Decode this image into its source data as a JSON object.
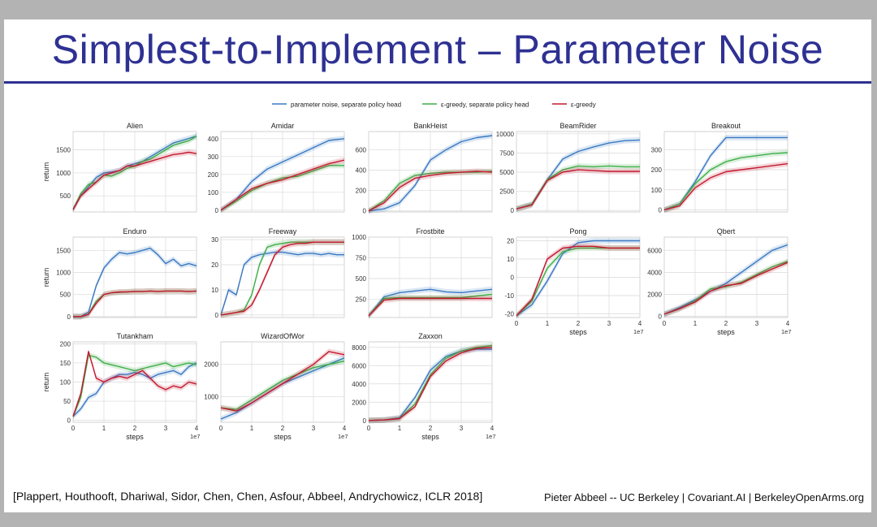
{
  "slide": {
    "title": "Simplest-to-Implement – Parameter Noise",
    "citation": "[Plappert, Houthooft,  Dhariwal, Sidor, Chen, Chen, Asfour, Abbeel, Andrychowicz, ICLR 2018]",
    "credit": "Pieter Abbeel -- UC Berkeley | Covariant.AI | BerkeleyOpenArms.org"
  },
  "colors": {
    "title": "#2e3192",
    "blue": "#3a78c2",
    "green": "#3fae49",
    "red": "#c4182f",
    "grid": "#d9d9d9"
  },
  "chart_data": {
    "type": "line",
    "legend": [
      {
        "name": "parameter noise, separate policy head",
        "color": "#3a78c2"
      },
      {
        "name": "ε-greedy, separate policy head",
        "color": "#3fae49"
      },
      {
        "name": "ε-greedy",
        "color": "#c4182f"
      }
    ],
    "x_tick_labels": [
      "0",
      "1",
      "2",
      "3",
      "4"
    ],
    "x_multiplier": "1e7",
    "xlabel": "steps",
    "ylabel": "return",
    "xlim": [
      0,
      4
    ],
    "panels": [
      {
        "title": "Alien",
        "ylim": [
          150,
          1900
        ],
        "yticks": [
          500,
          1000,
          1500
        ],
        "x": [
          0,
          0.25,
          0.5,
          0.75,
          1,
          1.25,
          1.5,
          1.75,
          2,
          2.25,
          2.5,
          2.75,
          3,
          3.25,
          3.5,
          3.75,
          4
        ],
        "series": [
          {
            "name": "parameter noise, separate policy head",
            "values": [
              200,
              500,
              700,
              900,
              1000,
              1020,
              1050,
              1150,
              1200,
              1250,
              1350,
              1450,
              1550,
              1650,
              1700,
              1750,
              1800
            ]
          },
          {
            "name": "ε-greedy, separate policy head",
            "values": [
              200,
              550,
              750,
              800,
              950,
              930,
              1000,
              1100,
              1150,
              1250,
              1300,
              1400,
              1500,
              1600,
              1650,
              1700,
              1800
            ]
          },
          {
            "name": "ε-greedy",
            "values": [
              200,
              500,
              650,
              800,
              950,
              1000,
              1050,
              1150,
              1150,
              1200,
              1250,
              1300,
              1350,
              1400,
              1420,
              1450,
              1420
            ]
          }
        ]
      },
      {
        "title": "Amidar",
        "ylim": [
          -10,
          440
        ],
        "yticks": [
          0,
          100,
          200,
          300,
          400
        ],
        "x": [
          0,
          0.5,
          1,
          1.5,
          2,
          2.5,
          3,
          3.5,
          4
        ],
        "series": [
          {
            "name": "parameter noise, separate policy head",
            "values": [
              0,
              60,
              160,
              230,
              270,
              310,
              350,
              390,
              400
            ]
          },
          {
            "name": "ε-greedy, separate policy head",
            "values": [
              0,
              50,
              110,
              150,
              180,
              190,
              220,
              250,
              250
            ]
          },
          {
            "name": "ε-greedy",
            "values": [
              0,
              60,
              120,
              150,
              170,
              200,
              230,
              260,
              280
            ]
          }
        ]
      },
      {
        "title": "BankHeist",
        "ylim": [
          -10,
          780
        ],
        "yticks": [
          0,
          200,
          400,
          600
        ],
        "x": [
          0,
          0.5,
          1,
          1.5,
          2,
          2.5,
          3,
          3.5,
          4
        ],
        "series": [
          {
            "name": "parameter noise, separate policy head",
            "values": [
              0,
              20,
              80,
              250,
              500,
              600,
              680,
              720,
              740
            ]
          },
          {
            "name": "ε-greedy, separate policy head",
            "values": [
              0,
              100,
              270,
              350,
              370,
              380,
              380,
              380,
              390
            ]
          },
          {
            "name": "ε-greedy",
            "values": [
              0,
              80,
              230,
              320,
              350,
              370,
              380,
              390,
              380
            ]
          }
        ]
      },
      {
        "title": "BeamRider",
        "ylim": [
          -200,
          10300
        ],
        "yticks": [
          0,
          2500,
          5000,
          7500,
          10000
        ],
        "x": [
          0,
          0.5,
          1,
          1.5,
          2,
          2.5,
          3,
          3.5,
          4
        ],
        "series": [
          {
            "name": "parameter noise, separate policy head",
            "values": [
              200,
              800,
              4000,
              6700,
              7700,
              8300,
              8800,
              9100,
              9200
            ]
          },
          {
            "name": "ε-greedy, separate policy head",
            "values": [
              200,
              800,
              4000,
              5300,
              5800,
              5700,
              5800,
              5700,
              5700
            ]
          },
          {
            "name": "ε-greedy",
            "values": [
              200,
              700,
              3900,
              5000,
              5300,
              5200,
              5100,
              5100,
              5100
            ]
          }
        ]
      },
      {
        "title": "Breakout",
        "ylim": [
          -10,
          390
        ],
        "yticks": [
          0,
          100,
          200,
          300
        ],
        "x": [
          0,
          0.5,
          1,
          1.5,
          2,
          2.5,
          3,
          3.5,
          4
        ],
        "series": [
          {
            "name": "parameter noise, separate policy head",
            "values": [
              0,
              30,
              140,
              270,
              360,
              360,
              360,
              360,
              360
            ]
          },
          {
            "name": "ε-greedy, separate policy head",
            "values": [
              0,
              30,
              130,
              200,
              240,
              260,
              270,
              280,
              285
            ]
          },
          {
            "name": "ε-greedy",
            "values": [
              0,
              20,
              110,
              160,
              190,
              200,
              210,
              220,
              230
            ]
          }
        ]
      },
      {
        "title": "Enduro",
        "ylim": [
          -20,
          1800
        ],
        "yticks": [
          0,
          500,
          1000,
          1500
        ],
        "x": [
          0,
          0.25,
          0.5,
          0.75,
          1,
          1.25,
          1.5,
          1.75,
          2,
          2.25,
          2.5,
          2.75,
          3,
          3.25,
          3.5,
          3.75,
          4
        ],
        "series": [
          {
            "name": "parameter noise, separate policy head",
            "values": [
              0,
              0,
              100,
              700,
              1100,
              1300,
              1450,
              1420,
              1450,
              1500,
              1550,
              1400,
              1200,
              1300,
              1150,
              1200,
              1150
            ]
          },
          {
            "name": "ε-greedy, separate policy head",
            "values": [
              0,
              0,
              50,
              350,
              500,
              540,
              550,
              560,
              570,
              570,
              580,
              570,
              580,
              580,
              580,
              570,
              580
            ]
          },
          {
            "name": "ε-greedy",
            "values": [
              0,
              0,
              50,
              300,
              500,
              540,
              560,
              560,
              570,
              570,
              580,
              570,
              580,
              580,
              580,
              570,
              580
            ]
          }
        ]
      },
      {
        "title": "Freeway",
        "ylim": [
          -1,
          31
        ],
        "yticks": [
          0,
          10,
          20,
          30
        ],
        "x": [
          0,
          0.25,
          0.5,
          0.75,
          1,
          1.25,
          1.5,
          1.75,
          2,
          2.25,
          2.5,
          2.75,
          3,
          3.25,
          3.5,
          3.75,
          4
        ],
        "series": [
          {
            "name": "parameter noise, separate policy head",
            "values": [
              0,
              10,
              8,
              20,
              23,
              24,
              24.5,
              25,
              25,
              24.5,
              24,
              24.5,
              24.5,
              24,
              24.5,
              24,
              24
            ]
          },
          {
            "name": "ε-greedy, separate policy head",
            "values": [
              0,
              0.5,
              1,
              2,
              8,
              20,
              27,
              28,
              28.5,
              29,
              29,
              29,
              29,
              29,
              29,
              29,
              29
            ]
          },
          {
            "name": "ε-greedy",
            "values": [
              0,
              0.5,
              1,
              1.5,
              4,
              10,
              17,
              24,
              27,
              28,
              28.5,
              28.5,
              29,
              29,
              29,
              29,
              29
            ]
          }
        ]
      },
      {
        "title": "Frostbite",
        "ylim": [
          30,
          1000
        ],
        "yticks": [
          250,
          500,
          750,
          1000
        ],
        "x": [
          0,
          0.5,
          1,
          1.5,
          2,
          2.5,
          3,
          3.5,
          4
        ],
        "series": [
          {
            "name": "parameter noise, separate policy head",
            "values": [
              50,
              280,
              330,
              350,
              370,
              340,
              330,
              350,
              370
            ]
          },
          {
            "name": "ε-greedy, separate policy head",
            "values": [
              50,
              260,
              270,
              270,
              270,
              270,
              270,
              290,
              310
            ]
          },
          {
            "name": "ε-greedy",
            "values": [
              50,
              240,
              260,
              260,
              260,
              260,
              260,
              260,
              260
            ]
          }
        ]
      },
      {
        "title": "Pong",
        "ylim": [
          -22,
          22
        ],
        "yticks": [
          -20,
          -10,
          0,
          10,
          20
        ],
        "x": [
          0,
          0.5,
          1,
          1.5,
          2,
          2.5,
          3,
          3.5,
          4
        ],
        "series": [
          {
            "name": "parameter noise, separate policy head",
            "values": [
              -21,
              -15,
              -2,
              13,
              19,
              20,
              20,
              20,
              20
            ]
          },
          {
            "name": "ε-greedy, separate policy head",
            "values": [
              -21,
              -13,
              5,
              14,
              16,
              16,
              16,
              16,
              16
            ]
          },
          {
            "name": "ε-greedy",
            "values": [
              -21,
              -12,
              10,
              16,
              17,
              17,
              16,
              16,
              16
            ]
          }
        ]
      },
      {
        "title": "Qbert",
        "ylim": [
          -100,
          7200
        ],
        "yticks": [
          0,
          2000,
          4000,
          6000
        ],
        "x": [
          0,
          0.5,
          1,
          1.5,
          2,
          2.5,
          3,
          3.5,
          4
        ],
        "series": [
          {
            "name": "parameter noise, separate policy head",
            "values": [
              200,
              800,
              1500,
              2300,
              3000,
              4000,
              5000,
              6000,
              6500
            ]
          },
          {
            "name": "ε-greedy, separate policy head",
            "values": [
              200,
              700,
              1400,
              2500,
              2700,
              3100,
              3800,
              4500,
              5000
            ]
          },
          {
            "name": "ε-greedy",
            "values": [
              200,
              700,
              1300,
              2300,
              2800,
              3000,
              3700,
              4300,
              4900
            ]
          }
        ]
      },
      {
        "title": "Tutankham",
        "ylim": [
          -5,
          205
        ],
        "yticks": [
          0,
          50,
          100,
          150,
          200
        ],
        "x": [
          0,
          0.25,
          0.5,
          0.75,
          1,
          1.25,
          1.5,
          1.75,
          2,
          2.25,
          2.5,
          2.75,
          3,
          3.25,
          3.5,
          3.75,
          4
        ],
        "series": [
          {
            "name": "parameter noise, separate policy head",
            "values": [
              10,
              30,
              60,
              70,
              100,
              110,
              120,
              120,
              125,
              120,
              110,
              120,
              125,
              130,
              120,
              140,
              150
            ]
          },
          {
            "name": "ε-greedy, separate policy head",
            "values": [
              10,
              60,
              170,
              165,
              150,
              145,
              140,
              135,
              130,
              135,
              140,
              145,
              150,
              140,
              145,
              150,
              145
            ]
          },
          {
            "name": "ε-greedy",
            "values": [
              10,
              70,
              180,
              110,
              100,
              110,
              115,
              110,
              120,
              130,
              110,
              90,
              80,
              90,
              85,
              100,
              95
            ]
          }
        ]
      },
      {
        "title": "WizardOfWor",
        "ylim": [
          200,
          2700
        ],
        "yticks": [
          1000,
          2000
        ],
        "x": [
          0,
          0.5,
          1,
          1.5,
          2,
          2.5,
          3,
          3.5,
          4
        ],
        "series": [
          {
            "name": "parameter noise, separate policy head",
            "values": [
              300,
              500,
              800,
              1100,
              1400,
              1600,
              1800,
              2000,
              2200
            ]
          },
          {
            "name": "ε-greedy, separate policy head",
            "values": [
              650,
              600,
              900,
              1200,
              1500,
              1700,
              1900,
              2000,
              2100
            ]
          },
          {
            "name": "ε-greedy",
            "values": [
              650,
              550,
              800,
              1100,
              1400,
              1700,
              2000,
              2400,
              2300
            ]
          }
        ]
      },
      {
        "title": "Zaxxon",
        "ylim": [
          -200,
          8600
        ],
        "yticks": [
          0,
          2000,
          4000,
          6000,
          8000
        ],
        "x": [
          0,
          0.5,
          1,
          1.5,
          2,
          2.5,
          3,
          3.5,
          4
        ],
        "series": [
          {
            "name": "parameter noise, separate policy head",
            "values": [
              0,
              50,
              300,
              2500,
              5500,
              7000,
              7600,
              7800,
              7800
            ]
          },
          {
            "name": "ε-greedy, separate policy head",
            "values": [
              0,
              50,
              200,
              1800,
              5000,
              6800,
              7600,
              8000,
              8200
            ]
          },
          {
            "name": "ε-greedy",
            "values": [
              0,
              50,
              200,
              1500,
              4800,
              6500,
              7400,
              7900,
              8000
            ]
          }
        ]
      }
    ]
  }
}
